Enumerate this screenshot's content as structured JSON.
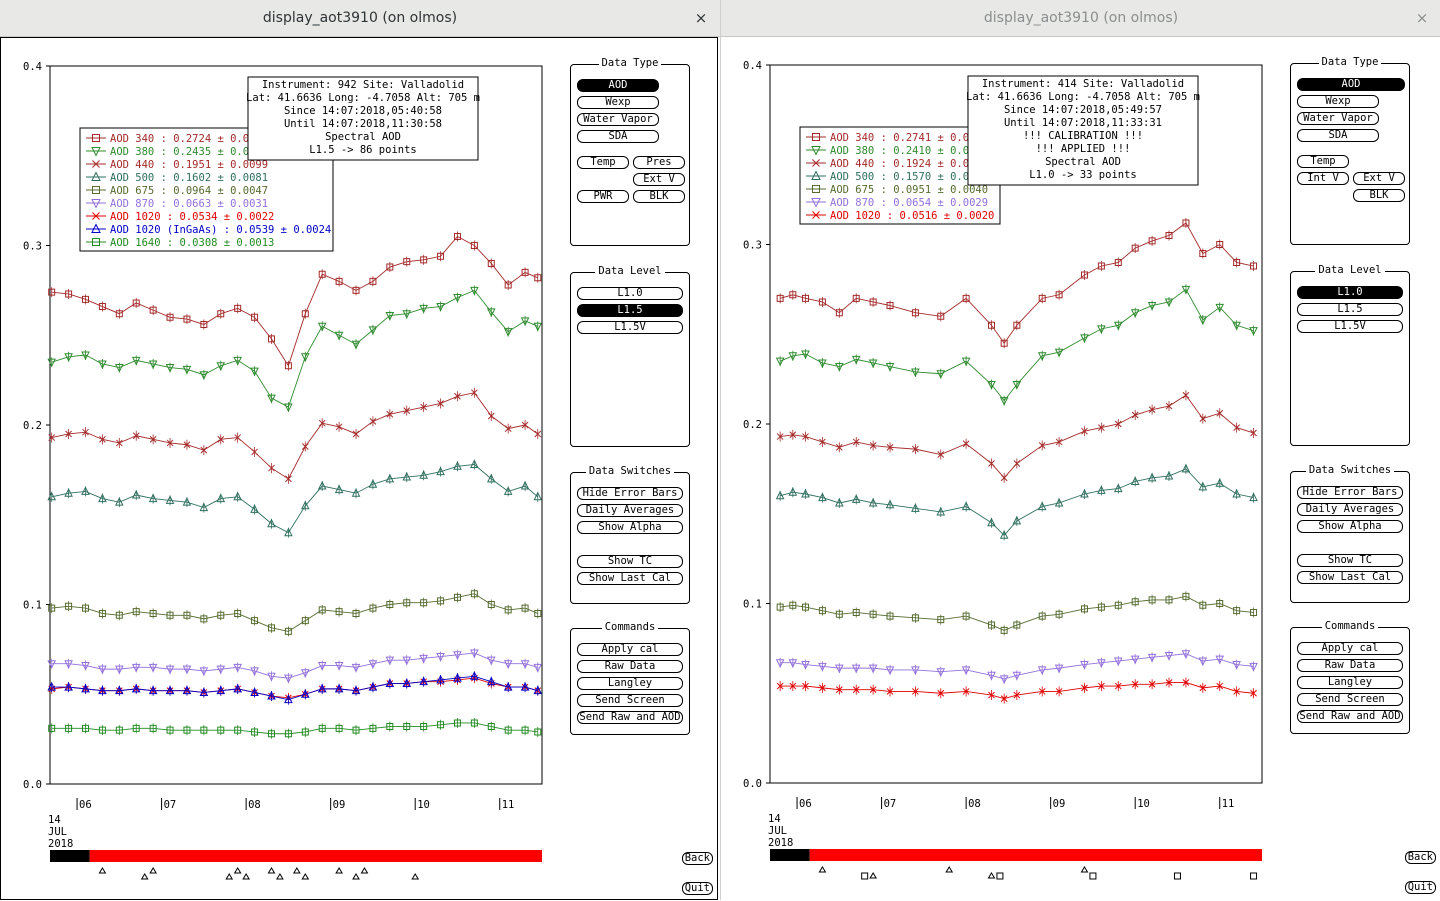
{
  "left": {
    "title": "display_aot3910 (on olmos)",
    "close": "×",
    "info": [
      "Instrument: 942 Site: Valladolid",
      "Lat: 41.6636 Long: -4.7058 Alt: 705 m",
      "Since 14:07:2018,05:40:58",
      "Until 14:07:2018,11:30:58",
      "Spectral AOD",
      "L1.5 -> 86 points"
    ],
    "legend": [
      {
        "text": "AOD 340   : 0.2724 ± 0.0",
        "color": "#a52a2a",
        "marker": "sq"
      },
      {
        "text": "AOD 380   : 0.2435 ± 0.0",
        "color": "#2e8b2e",
        "marker": "tri-down"
      },
      {
        "text": "AOD 440   : 0.1951 ± 0.0099",
        "color": "#a52a2a",
        "marker": "x"
      },
      {
        "text": "AOD 500   : 0.1602 ± 0.0081",
        "color": "#2f6f5f",
        "marker": "tri"
      },
      {
        "text": "AOD 675   : 0.0964 ± 0.0047",
        "color": "#556b2f",
        "marker": "sq"
      },
      {
        "text": "AOD 870   : 0.0663 ± 0.0031",
        "color": "#9370db",
        "marker": "tri-down"
      },
      {
        "text": "AOD 1020  : 0.0534 ± 0.0022",
        "color": "#e00000",
        "marker": "x"
      },
      {
        "text": "AOD 1020 (InGaAs)  : 0.0539 ± 0.0024",
        "color": "#0000cc",
        "marker": "tri"
      },
      {
        "text": "AOD 1640  : 0.0308 ± 0.0013",
        "color": "#228b22",
        "marker": "sq"
      }
    ],
    "data_type": {
      "title": "Data Type",
      "buttons": [
        "AOD",
        "Wexp",
        "Water Vapor",
        "SDA",
        "Temp",
        "Pres",
        "Ext V",
        "PWR",
        "BLK"
      ],
      "selected": "AOD"
    },
    "data_level": {
      "title": "Data Level",
      "buttons": [
        "L1.0",
        "L1.5",
        "L1.5V"
      ],
      "selected": "L1.5"
    },
    "data_switches": {
      "title": "Data Switches",
      "buttons": [
        "Hide Error Bars",
        "Daily Averages",
        "Show Alpha",
        "Show TC",
        "Show Last Cal"
      ]
    },
    "commands": {
      "title": "Commands",
      "buttons": [
        "Apply cal",
        "Raw Data",
        "Langley",
        "Send Screen",
        "Send Raw and AOD"
      ]
    },
    "back": "Back",
    "quit": "Quit",
    "date": [
      "14",
      "JUL",
      "2018"
    ]
  },
  "right": {
    "title": "display_aot3910 (on olmos)",
    "close": "×",
    "info": [
      "Instrument: 414 Site: Valladolid",
      "Lat: 41.6636 Long: -4.7058 Alt: 705 m",
      "Since 14:07:2018,05:49:57",
      "Until 14:07:2018,11:33:31",
      "!!! CALIBRATION !!!",
      "!!!   APPLIED   !!!",
      "Spectral AOD",
      "L1.0 -> 33 points"
    ],
    "legend": [
      {
        "text": "AOD 340   : 0.2741 ± 0.0",
        "color": "#a52a2a",
        "marker": "sq"
      },
      {
        "text": "AOD 380   : 0.2410 ± 0.0",
        "color": "#2e8b2e",
        "marker": "tri-down"
      },
      {
        "text": "AOD 440   : 0.1924 ± 0.0",
        "color": "#a52a2a",
        "marker": "x"
      },
      {
        "text": "AOD 500   : 0.1570 ± 0.0",
        "color": "#2f6f5f",
        "marker": "tri"
      },
      {
        "text": "AOD 675   : 0.0951 ± 0.0040",
        "color": "#556b2f",
        "marker": "sq"
      },
      {
        "text": "AOD 870   : 0.0654 ± 0.0029",
        "color": "#9370db",
        "marker": "tri-down"
      },
      {
        "text": "AOD 1020  : 0.0516 ± 0.0020",
        "color": "#e00000",
        "marker": "x"
      }
    ],
    "data_type": {
      "title": "Data Type",
      "buttons": [
        "AOD",
        "Wexp",
        "Water Vapor",
        "SDA",
        "Temp",
        "Int V",
        "Ext V",
        "BLK"
      ],
      "selected": "AOD"
    },
    "data_level": {
      "title": "Data Level",
      "buttons": [
        "L1.0",
        "L1.5",
        "L1.5V"
      ],
      "selected": "L1.0"
    },
    "data_switches": {
      "title": "Data Switches",
      "buttons": [
        "Hide Error Bars",
        "Daily Averages",
        "Show Alpha",
        "Show TC",
        "Show Last Cal"
      ]
    },
    "commands": {
      "title": "Commands",
      "buttons": [
        "Apply cal",
        "Raw Data",
        "Langley",
        "Send Screen",
        "Send Raw and AOD"
      ]
    },
    "back": "Back",
    "quit": "Quit",
    "date": [
      "14",
      "JUL",
      "2018"
    ]
  },
  "chart_data": [
    {
      "type": "scatter",
      "title": "",
      "ylim": [
        0,
        0.4
      ],
      "yticks": [
        "0.0",
        "0.1",
        "0.2",
        "0.3",
        "0.4"
      ],
      "xlim": [
        5.68,
        11.5
      ],
      "xticks": [
        "06",
        "07",
        "08",
        "09",
        "10",
        "11"
      ],
      "x": [
        5.7,
        5.9,
        6.1,
        6.3,
        6.5,
        6.7,
        6.9,
        7.1,
        7.3,
        7.5,
        7.7,
        7.9,
        8.1,
        8.3,
        8.5,
        8.7,
        8.9,
        9.1,
        9.3,
        9.5,
        9.7,
        9.9,
        10.1,
        10.3,
        10.5,
        10.7,
        10.9,
        11.1,
        11.3,
        11.45
      ],
      "series": [
        {
          "name": "AOD 340",
          "color": "#a52a2a",
          "marker": "sq",
          "values": [
            0.274,
            0.273,
            0.27,
            0.266,
            0.262,
            0.268,
            0.264,
            0.26,
            0.259,
            0.256,
            0.262,
            0.265,
            0.26,
            0.248,
            0.233,
            0.262,
            0.284,
            0.28,
            0.275,
            0.28,
            0.288,
            0.291,
            0.292,
            0.294,
            0.305,
            0.3,
            0.29,
            0.278,
            0.285,
            0.282
          ]
        },
        {
          "name": "AOD 380",
          "color": "#2e8b2e",
          "marker": "tri-down",
          "values": [
            0.235,
            0.238,
            0.239,
            0.234,
            0.232,
            0.236,
            0.234,
            0.232,
            0.231,
            0.228,
            0.233,
            0.236,
            0.23,
            0.215,
            0.21,
            0.238,
            0.255,
            0.25,
            0.245,
            0.253,
            0.261,
            0.262,
            0.265,
            0.266,
            0.271,
            0.275,
            0.263,
            0.252,
            0.258,
            0.255
          ]
        },
        {
          "name": "AOD 440",
          "color": "#a52a2a",
          "marker": "x",
          "values": [
            0.193,
            0.195,
            0.196,
            0.192,
            0.19,
            0.194,
            0.192,
            0.19,
            0.189,
            0.186,
            0.192,
            0.193,
            0.185,
            0.176,
            0.17,
            0.188,
            0.201,
            0.199,
            0.195,
            0.202,
            0.206,
            0.208,
            0.21,
            0.212,
            0.216,
            0.218,
            0.205,
            0.198,
            0.2,
            0.195
          ]
        },
        {
          "name": "AOD 500",
          "color": "#2f6f5f",
          "marker": "tri",
          "values": [
            0.16,
            0.162,
            0.163,
            0.159,
            0.157,
            0.161,
            0.159,
            0.158,
            0.157,
            0.154,
            0.159,
            0.16,
            0.153,
            0.145,
            0.14,
            0.155,
            0.166,
            0.164,
            0.162,
            0.167,
            0.17,
            0.171,
            0.172,
            0.174,
            0.177,
            0.178,
            0.17,
            0.163,
            0.166,
            0.16
          ]
        },
        {
          "name": "AOD 675",
          "color": "#556b2f",
          "marker": "sq",
          "values": [
            0.098,
            0.099,
            0.098,
            0.095,
            0.094,
            0.096,
            0.095,
            0.094,
            0.094,
            0.092,
            0.094,
            0.095,
            0.091,
            0.087,
            0.085,
            0.091,
            0.097,
            0.096,
            0.095,
            0.098,
            0.1,
            0.101,
            0.101,
            0.102,
            0.104,
            0.106,
            0.1,
            0.097,
            0.098,
            0.095
          ]
        },
        {
          "name": "AOD 870",
          "color": "#9370db",
          "marker": "tri-down",
          "values": [
            0.067,
            0.067,
            0.066,
            0.064,
            0.064,
            0.065,
            0.065,
            0.064,
            0.064,
            0.063,
            0.064,
            0.065,
            0.063,
            0.06,
            0.059,
            0.062,
            0.066,
            0.066,
            0.065,
            0.067,
            0.069,
            0.069,
            0.07,
            0.071,
            0.072,
            0.073,
            0.069,
            0.067,
            0.067,
            0.065
          ]
        },
        {
          "name": "AOD 1020",
          "color": "#e00000",
          "marker": "x",
          "values": [
            0.053,
            0.054,
            0.053,
            0.052,
            0.052,
            0.053,
            0.052,
            0.052,
            0.052,
            0.051,
            0.052,
            0.053,
            0.051,
            0.049,
            0.048,
            0.05,
            0.053,
            0.053,
            0.052,
            0.054,
            0.056,
            0.056,
            0.057,
            0.057,
            0.058,
            0.059,
            0.056,
            0.054,
            0.054,
            0.052
          ]
        },
        {
          "name": "AOD 1020 (InGaAs)",
          "color": "#0000cc",
          "marker": "tri",
          "values": [
            0.054,
            0.054,
            0.053,
            0.052,
            0.052,
            0.053,
            0.052,
            0.052,
            0.052,
            0.051,
            0.052,
            0.053,
            0.051,
            0.049,
            0.047,
            0.05,
            0.053,
            0.053,
            0.052,
            0.054,
            0.056,
            0.056,
            0.057,
            0.058,
            0.059,
            0.06,
            0.057,
            0.054,
            0.054,
            0.052
          ]
        },
        {
          "name": "AOD 1640",
          "color": "#228b22",
          "marker": "sq",
          "values": [
            0.031,
            0.031,
            0.031,
            0.03,
            0.03,
            0.031,
            0.031,
            0.03,
            0.03,
            0.03,
            0.03,
            0.03,
            0.029,
            0.028,
            0.028,
            0.029,
            0.031,
            0.031,
            0.03,
            0.031,
            0.032,
            0.032,
            0.032,
            0.033,
            0.034,
            0.034,
            0.032,
            0.03,
            0.03,
            0.029
          ]
        }
      ],
      "timeline": {
        "start": 5.68,
        "end": 11.5,
        "red_from": 6.15,
        "triangle_markers": [
          6.3,
          6.8,
          6.9,
          7.8,
          7.9,
          8.0,
          8.3,
          8.4,
          8.6,
          8.7,
          9.1,
          9.3,
          9.4,
          10.0
        ],
        "square_markers": []
      }
    },
    {
      "type": "scatter",
      "title": "",
      "ylim": [
        0,
        0.4
      ],
      "yticks": [
        "0.0",
        "0.1",
        "0.2",
        "0.3",
        "0.4"
      ],
      "xlim": [
        5.68,
        11.5
      ],
      "xticks": [
        "06",
        "07",
        "08",
        "09",
        "10",
        "11"
      ],
      "x": [
        5.8,
        5.95,
        6.1,
        6.3,
        6.5,
        6.7,
        6.9,
        7.1,
        7.4,
        7.7,
        8.0,
        8.3,
        8.45,
        8.6,
        8.9,
        9.1,
        9.4,
        9.6,
        9.8,
        10.0,
        10.2,
        10.4,
        10.6,
        10.8,
        11.0,
        11.2,
        11.4
      ],
      "series": [
        {
          "name": "AOD 340",
          "color": "#a52a2a",
          "marker": "sq",
          "values": [
            0.27,
            0.272,
            0.27,
            0.268,
            0.262,
            0.27,
            0.268,
            0.266,
            0.262,
            0.26,
            0.27,
            0.255,
            0.245,
            0.255,
            0.27,
            0.272,
            0.283,
            0.288,
            0.29,
            0.298,
            0.302,
            0.305,
            0.312,
            0.295,
            0.3,
            0.29,
            0.288
          ]
        },
        {
          "name": "AOD 380",
          "color": "#2e8b2e",
          "marker": "tri-down",
          "values": [
            0.235,
            0.238,
            0.239,
            0.234,
            0.232,
            0.236,
            0.234,
            0.232,
            0.229,
            0.228,
            0.235,
            0.222,
            0.213,
            0.222,
            0.238,
            0.24,
            0.248,
            0.253,
            0.255,
            0.262,
            0.266,
            0.268,
            0.275,
            0.258,
            0.265,
            0.255,
            0.252
          ]
        },
        {
          "name": "AOD 440",
          "color": "#a52a2a",
          "marker": "x",
          "values": [
            0.193,
            0.194,
            0.193,
            0.19,
            0.187,
            0.19,
            0.188,
            0.187,
            0.186,
            0.183,
            0.189,
            0.178,
            0.17,
            0.178,
            0.188,
            0.19,
            0.196,
            0.198,
            0.2,
            0.205,
            0.208,
            0.21,
            0.216,
            0.203,
            0.206,
            0.198,
            0.195
          ]
        },
        {
          "name": "AOD 500",
          "color": "#2f6f5f",
          "marker": "tri",
          "values": [
            0.16,
            0.162,
            0.161,
            0.159,
            0.156,
            0.158,
            0.156,
            0.155,
            0.153,
            0.151,
            0.154,
            0.145,
            0.138,
            0.146,
            0.154,
            0.156,
            0.161,
            0.163,
            0.164,
            0.168,
            0.17,
            0.171,
            0.175,
            0.165,
            0.167,
            0.161,
            0.159
          ]
        },
        {
          "name": "AOD 675",
          "color": "#556b2f",
          "marker": "sq",
          "values": [
            0.098,
            0.099,
            0.098,
            0.096,
            0.094,
            0.095,
            0.094,
            0.093,
            0.092,
            0.091,
            0.093,
            0.088,
            0.085,
            0.088,
            0.093,
            0.094,
            0.097,
            0.098,
            0.099,
            0.101,
            0.102,
            0.102,
            0.104,
            0.099,
            0.1,
            0.096,
            0.095
          ]
        },
        {
          "name": "AOD 870",
          "color": "#9370db",
          "marker": "tri-down",
          "values": [
            0.067,
            0.067,
            0.066,
            0.065,
            0.064,
            0.064,
            0.064,
            0.063,
            0.063,
            0.062,
            0.063,
            0.06,
            0.058,
            0.06,
            0.063,
            0.064,
            0.066,
            0.067,
            0.068,
            0.069,
            0.07,
            0.071,
            0.072,
            0.068,
            0.069,
            0.066,
            0.065
          ]
        },
        {
          "name": "AOD 1020",
          "color": "#e00000",
          "marker": "x",
          "values": [
            0.054,
            0.054,
            0.054,
            0.053,
            0.052,
            0.052,
            0.052,
            0.051,
            0.051,
            0.05,
            0.051,
            0.049,
            0.047,
            0.049,
            0.051,
            0.051,
            0.053,
            0.054,
            0.054,
            0.055,
            0.055,
            0.056,
            0.056,
            0.053,
            0.054,
            0.051,
            0.05
          ]
        }
      ],
      "timeline": {
        "start": 5.68,
        "end": 11.5,
        "red_from": 6.15,
        "triangle_markers": [
          6.3,
          6.9,
          7.8,
          8.3,
          9.4
        ],
        "square_markers": [
          6.8,
          8.4,
          9.5,
          10.5,
          11.4
        ]
      }
    }
  ]
}
